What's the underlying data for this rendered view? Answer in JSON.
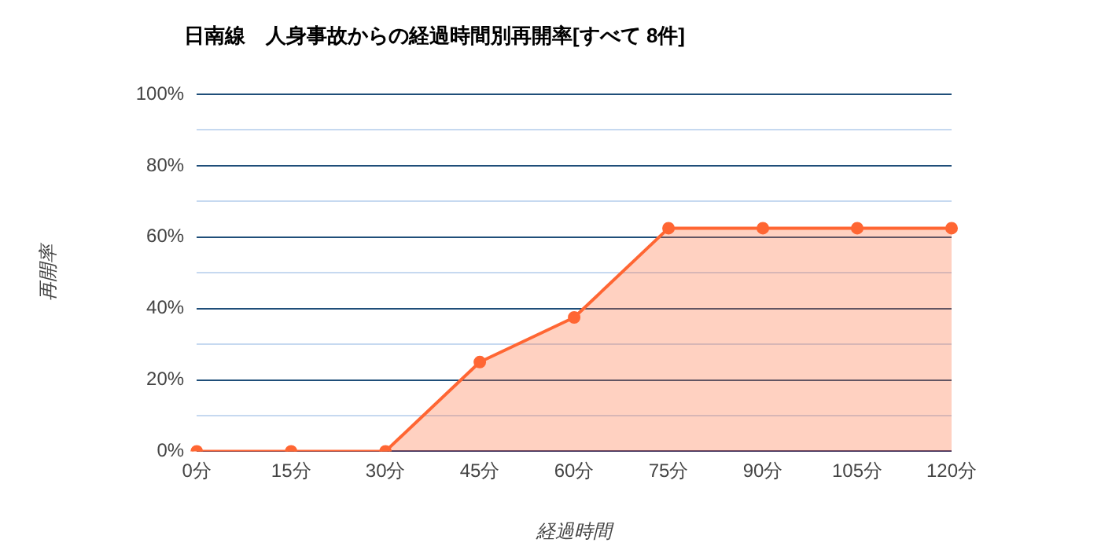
{
  "chart_data": {
    "type": "area",
    "title": "日南線　人身事故からの経過時間別再開率[すべて 8件]",
    "xlabel": "経過時間",
    "ylabel": "再開率",
    "categories": [
      "0分",
      "15分",
      "30分",
      "45分",
      "60分",
      "75分",
      "90分",
      "105分",
      "120分"
    ],
    "series": [
      {
        "color": "#ff6633",
        "values": [
          0,
          0,
          0,
          25,
          37.5,
          62.5,
          62.5,
          62.5,
          62.5
        ]
      }
    ],
    "ylim": [
      0,
      100
    ],
    "yticks": [
      {
        "value": 0,
        "label": "0%"
      },
      {
        "value": 10,
        "label": null
      },
      {
        "value": 20,
        "label": "20%"
      },
      {
        "value": 30,
        "label": null
      },
      {
        "value": 40,
        "label": "40%"
      },
      {
        "value": 50,
        "label": null
      },
      {
        "value": 60,
        "label": "60%"
      },
      {
        "value": 70,
        "label": null
      },
      {
        "value": 80,
        "label": "80%"
      },
      {
        "value": 90,
        "label": null
      },
      {
        "value": 100,
        "label": "100%"
      }
    ],
    "grid": "y",
    "legend": false,
    "marker": "circle",
    "line_style": "solid"
  }
}
